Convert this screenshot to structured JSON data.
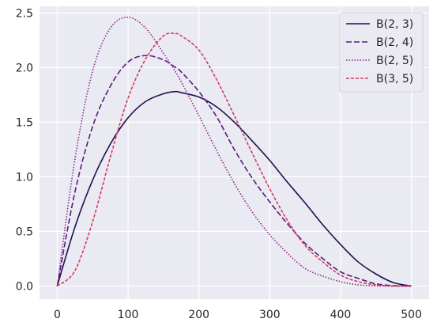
{
  "chart_data": {
    "type": "line",
    "title": "",
    "xlabel": "",
    "ylabel": "",
    "xlim": [
      -25,
      525
    ],
    "ylim": [
      -0.12,
      2.56
    ],
    "x_ticks": [
      0,
      100,
      200,
      300,
      400,
      500
    ],
    "y_ticks": [
      0.0,
      0.5,
      1.0,
      1.5,
      2.0,
      2.5
    ],
    "x_tick_labels": [
      "0",
      "100",
      "200",
      "300",
      "400",
      "500"
    ],
    "y_tick_labels": [
      "0.0",
      "0.5",
      "1.0",
      "1.5",
      "2.0",
      "2.5"
    ],
    "grid": true,
    "legend_position": "top-right",
    "x": [
      0,
      25,
      50,
      75,
      100,
      125,
      150,
      167,
      175,
      200,
      225,
      250,
      275,
      300,
      325,
      350,
      375,
      400,
      425,
      450,
      475,
      500
    ],
    "series": [
      {
        "name": "B(2, 3)",
        "color": "#1f0f4f",
        "dash": "solid",
        "values": [
          0.0,
          0.54,
          0.97,
          1.3,
          1.54,
          1.69,
          1.76,
          1.78,
          1.77,
          1.73,
          1.64,
          1.5,
          1.33,
          1.15,
          0.95,
          0.76,
          0.56,
          0.38,
          0.22,
          0.11,
          0.03,
          0.0
        ]
      },
      {
        "name": "B(2, 4)",
        "color": "#5c1880",
        "dash": "dashed",
        "values": [
          0.0,
          0.86,
          1.46,
          1.83,
          2.05,
          2.11,
          2.07,
          2.0,
          1.96,
          1.78,
          1.55,
          1.25,
          0.99,
          0.77,
          0.57,
          0.39,
          0.25,
          0.13,
          0.07,
          0.02,
          0.004,
          0.0
        ]
      },
      {
        "name": "B(2, 5)",
        "color": "#8f2887",
        "dash": "dotted",
        "values": [
          0.0,
          1.16,
          1.97,
          2.36,
          2.46,
          2.36,
          2.13,
          1.96,
          1.87,
          1.56,
          1.24,
          0.94,
          0.68,
          0.47,
          0.3,
          0.16,
          0.09,
          0.04,
          0.01,
          0.002,
          0.0,
          0.0
        ]
      },
      {
        "name": "B(3, 5)",
        "color": "#d63c5e",
        "dash": "dashed-short",
        "values": [
          0.0,
          0.14,
          0.59,
          1.18,
          1.72,
          2.08,
          2.29,
          2.31,
          2.29,
          2.16,
          1.89,
          1.56,
          1.22,
          0.89,
          0.6,
          0.37,
          0.22,
          0.1,
          0.04,
          0.01,
          0.0,
          0.0
        ]
      }
    ]
  },
  "colors": {
    "plot_background": "#eaeaf2",
    "grid": "#ffffff",
    "text": "#262626"
  }
}
